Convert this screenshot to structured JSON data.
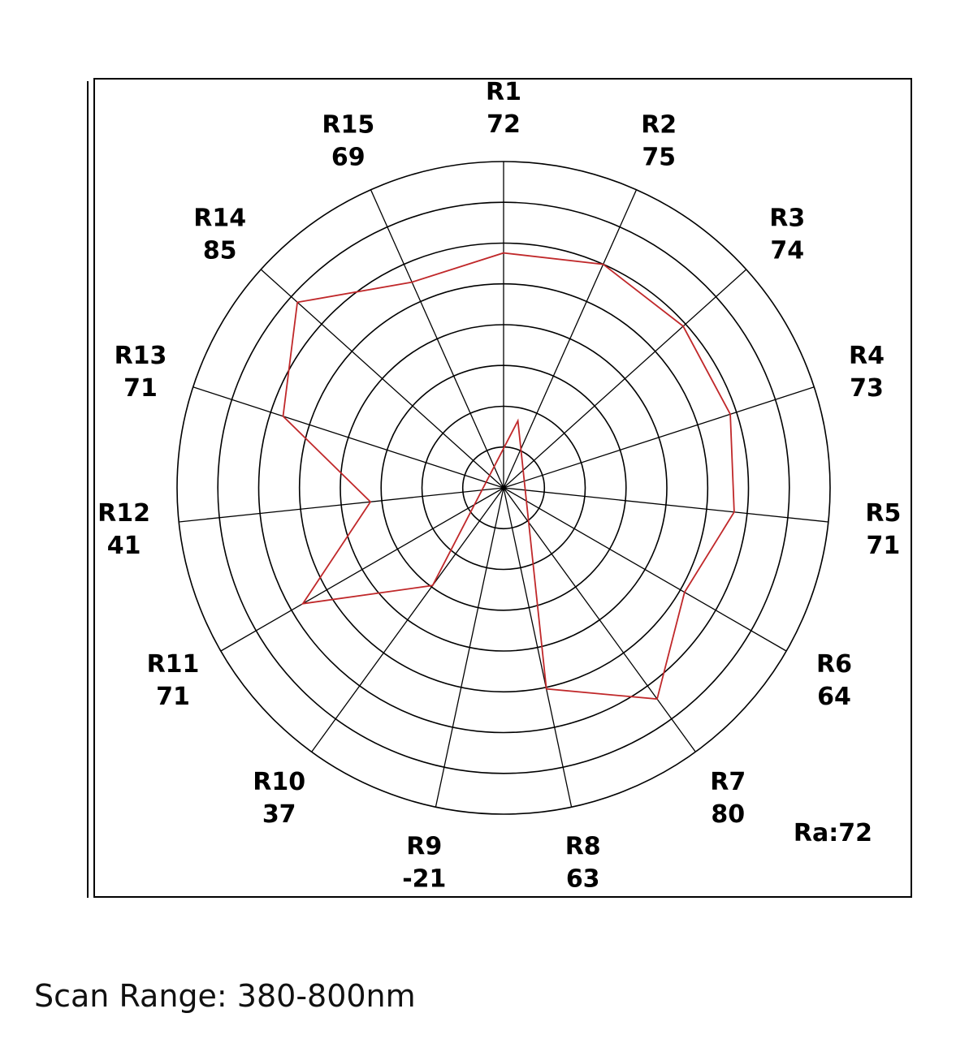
{
  "chart_data": {
    "type": "radar",
    "max_value": 100,
    "ring_count": 8,
    "grid": true,
    "line_color": "#c0282a",
    "categories": [
      "R1",
      "R2",
      "R3",
      "R4",
      "R5",
      "R6",
      "R7",
      "R8",
      "R9",
      "R10",
      "R11",
      "R12",
      "R13",
      "R14",
      "R15"
    ],
    "values": [
      72,
      75,
      74,
      73,
      71,
      64,
      80,
      63,
      -21,
      37,
      71,
      41,
      71,
      85,
      69
    ],
    "value_labels": [
      "72",
      "75",
      "74",
      "73",
      "71",
      "64",
      "80",
      "63",
      "-21",
      "37",
      "71",
      "41",
      "71",
      "85",
      "69"
    ],
    "annotation": "Ra:72"
  },
  "footer": {
    "scan_range": "Scan Range: 380-800nm"
  }
}
